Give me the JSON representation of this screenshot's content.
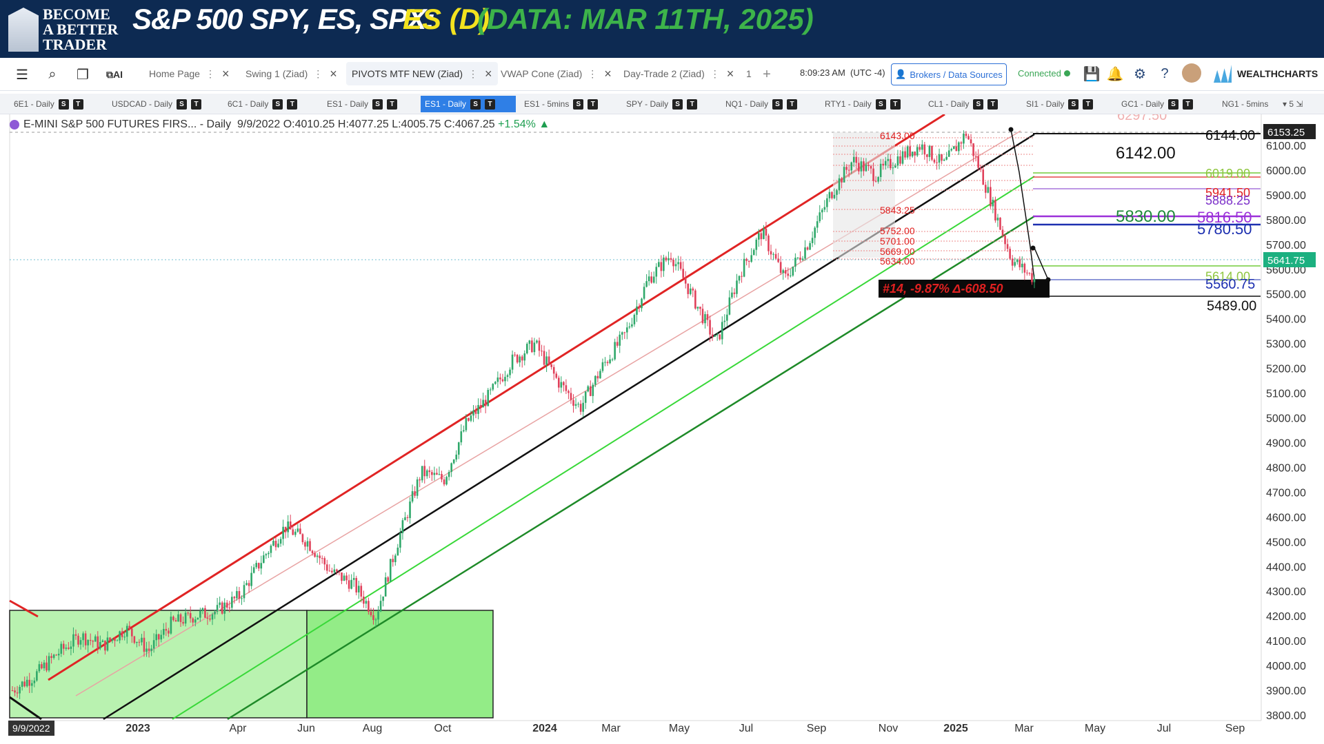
{
  "banner": {
    "logo_line1": "BECOME",
    "logo_line2": "A BETTER",
    "logo_line3": "TRADER",
    "title": "S&P 500 SPY, ES, SPX:",
    "es": "ES (D)",
    "data_label": "(DATA: MAR 11TH, 2025)"
  },
  "toolbar": {
    "tabs": [
      {
        "label": "Home Page"
      },
      {
        "label": "Swing 1 (Ziad)"
      },
      {
        "label": "PIVOTS MTF NEW (Ziad)"
      },
      {
        "label": "VWAP Cone (Ziad)"
      },
      {
        "label": "Day-Trade 2 (Ziad)"
      },
      {
        "label": "1"
      }
    ],
    "time": "8:09:23 AM",
    "timezone": "(UTC -4)",
    "brokers_label": "Brokers / Data Sources",
    "connected_label": "Connected",
    "brand": "WEALTHCHARTS"
  },
  "symbols": [
    {
      "label": "6E1 - Daily"
    },
    {
      "label": "USDCAD - Daily"
    },
    {
      "label": "6C1 - Daily"
    },
    {
      "label": "ES1 - Daily"
    },
    {
      "label": "ES1 - Daily"
    },
    {
      "label": "ES1 - 5mins"
    },
    {
      "label": "SPY - Daily"
    },
    {
      "label": "NQ1 - Daily"
    },
    {
      "label": "RTY1 - Daily"
    },
    {
      "label": "CL1 - Daily"
    },
    {
      "label": "SI1 - Daily"
    },
    {
      "label": "GC1 - Daily"
    },
    {
      "label": "NG1 - 5mins"
    }
  ],
  "symbol_more": "5",
  "legend": {
    "name": "E-MINI S&P 500 FUTURES FIRS... - Daily",
    "date": "9/9/2022",
    "o": "O:4010.25",
    "h": "H:4077.25",
    "l": "L:4005.75",
    "c": "C:4067.25",
    "chg": "+1.54%"
  },
  "chart_data": {
    "type": "candlestick",
    "y_axis": [
      "6100.00",
      "6000.00",
      "5900.00",
      "5800.00",
      "5700.00",
      "5600.00",
      "5500.00",
      "5400.00",
      "5300.00",
      "5200.00",
      "5100.00",
      "5000.00",
      "4900.00",
      "4800.00",
      "4700.00",
      "4600.00",
      "4500.00",
      "4400.00",
      "4300.00",
      "4200.00",
      "4100.00",
      "4000.00",
      "3900.00",
      "3800.00"
    ],
    "x_axis": [
      "2023",
      "Apr",
      "Jun",
      "Aug",
      "Oct",
      "2024",
      "Mar",
      "May",
      "Jul",
      "Sep",
      "Nov",
      "2025",
      "Mar",
      "May",
      "Jul",
      "Sep"
    ],
    "ylim": [
      3800,
      6200
    ],
    "close_path": [
      3900,
      3960,
      4050,
      4120,
      4080,
      4150,
      4060,
      4170,
      4200,
      4220,
      4280,
      4430,
      4560,
      4500,
      4380,
      4330,
      4200,
      4510,
      4780,
      4750,
      4980,
      5090,
      5230,
      5300,
      5150,
      5040,
      5210,
      5340,
      5560,
      5660,
      5480,
      5300,
      5580,
      5750,
      5560,
      5700,
      5900,
      6040,
      5980,
      6050,
      6100,
      6020,
      6150,
      5900,
      5640,
      5560
    ],
    "price_tags": [
      "6153.25",
      "5641.75"
    ],
    "levels": [
      {
        "label": "6144.00",
        "value": 6144,
        "color": "#111111"
      },
      {
        "label": "6142.00",
        "value": 6142,
        "color": "#111111"
      },
      {
        "label": "6019.00",
        "value": 6019,
        "color": "#8ec63f"
      },
      {
        "label": "5941.50",
        "value": 5941.5,
        "color": "#e02020"
      },
      {
        "label": "5888.25",
        "value": 5888.25,
        "color": "#7b2fc9"
      },
      {
        "label": "5830.00",
        "value": 5830,
        "color": "#1e8a3a"
      },
      {
        "label": "5816.50",
        "value": 5816.5,
        "color": "#9b30d9"
      },
      {
        "label": "5780.50",
        "value": 5780.5,
        "color": "#1c2fb0"
      },
      {
        "label": "5614.00",
        "value": 5614,
        "color": "#8ec63f"
      },
      {
        "label": "5560.75",
        "value": 5560.75,
        "color": "#1c2fb0"
      },
      {
        "label": "5489.00",
        "value": 5489,
        "color": "#111111"
      }
    ],
    "pivot_labels": [
      "6143.00",
      "5843.25",
      "5752.00",
      "5701.00",
      "5669.00",
      "5634.00"
    ],
    "annotation": "#14, -9.87% Δ-608.50",
    "top_label": "6297.50"
  },
  "bottom_date": "9/9/2022"
}
